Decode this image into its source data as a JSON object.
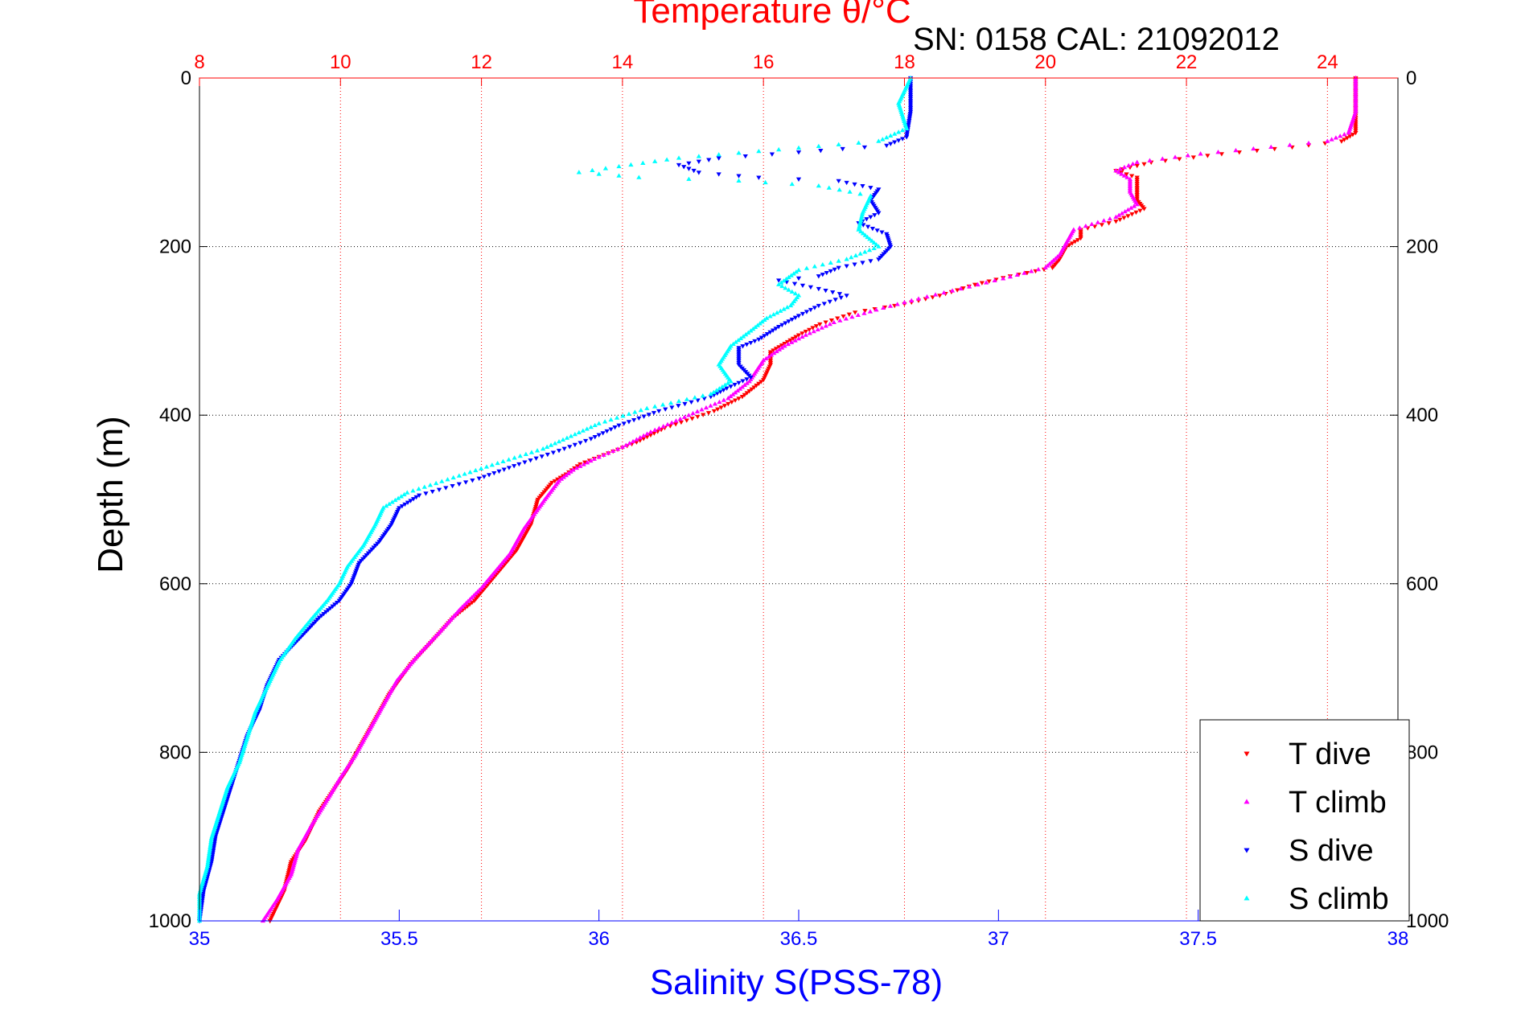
{
  "chart_data": {
    "type": "scatter",
    "title": "Temperature θ/°C",
    "subtitle": "SN: 0158  CAL: 21092012",
    "ylabel": "Depth (m)",
    "xlabel": "Salinity S(PSS-78)",
    "ylim": [
      0,
      1000
    ],
    "y_reversed": true,
    "y_ticks": [
      0,
      200,
      400,
      600,
      800,
      1000
    ],
    "y_tick_labels": [
      "0",
      "200",
      "400",
      "600",
      "800",
      "1000"
    ],
    "x_bottom": {
      "label": "Salinity S(PSS-78)",
      "lim": [
        35,
        38
      ],
      "ticks": [
        35,
        35.5,
        36,
        36.5,
        37,
        37.5,
        38
      ],
      "tick_labels": [
        "35",
        "35.5",
        "36",
        "36.5",
        "37",
        "37.5",
        "38"
      ],
      "color": "#0000ff"
    },
    "x_top": {
      "label": "Temperature θ/°C",
      "lim": [
        8,
        25
      ],
      "ticks": [
        8,
        10,
        12,
        14,
        16,
        18,
        20,
        22,
        24
      ],
      "tick_labels": [
        "8",
        "10",
        "12",
        "14",
        "16",
        "18",
        "20",
        "22",
        "24"
      ],
      "color": "#ff0000"
    },
    "grid": true,
    "legend_position": "bottom-right",
    "series": [
      {
        "name": "T dive",
        "axis": "top",
        "color": "#ff0000",
        "marker": "triangle-down",
        "points": [
          [
            24.4,
            0
          ],
          [
            24.4,
            40
          ],
          [
            24.4,
            65
          ],
          [
            24.2,
            75
          ],
          [
            23.5,
            82
          ],
          [
            22.5,
            90
          ],
          [
            21.5,
            100
          ],
          [
            21.0,
            110
          ],
          [
            21.3,
            118
          ],
          [
            21.3,
            130
          ],
          [
            21.3,
            145
          ],
          [
            21.4,
            155
          ],
          [
            21.0,
            170
          ],
          [
            20.5,
            180
          ],
          [
            20.5,
            190
          ],
          [
            20.3,
            200
          ],
          [
            20.2,
            215
          ],
          [
            20.1,
            225
          ],
          [
            19.5,
            235
          ],
          [
            19.0,
            245
          ],
          [
            18.5,
            258
          ],
          [
            18.0,
            268
          ],
          [
            17.3,
            278
          ],
          [
            16.8,
            292
          ],
          [
            16.5,
            305
          ],
          [
            16.3,
            315
          ],
          [
            16.1,
            325
          ],
          [
            16.1,
            340
          ],
          [
            16.0,
            358
          ],
          [
            15.7,
            378
          ],
          [
            15.3,
            395
          ],
          [
            14.6,
            415
          ],
          [
            14.2,
            432
          ],
          [
            13.8,
            445
          ],
          [
            13.4,
            458
          ],
          [
            13.2,
            470
          ],
          [
            13.0,
            480
          ],
          [
            12.8,
            500
          ],
          [
            12.7,
            530
          ],
          [
            12.5,
            560
          ],
          [
            12.3,
            580
          ],
          [
            12.1,
            600
          ],
          [
            11.9,
            620
          ],
          [
            11.6,
            640
          ],
          [
            11.3,
            668
          ],
          [
            11.0,
            695
          ],
          [
            10.7,
            730
          ],
          [
            10.5,
            760
          ],
          [
            10.3,
            790
          ],
          [
            10.1,
            820
          ],
          [
            9.9,
            845
          ],
          [
            9.7,
            870
          ],
          [
            9.5,
            905
          ],
          [
            9.3,
            930
          ],
          [
            9.2,
            965
          ],
          [
            9.0,
            1000
          ]
        ]
      },
      {
        "name": "T climb",
        "axis": "top",
        "color": "#ff00ff",
        "marker": "triangle-up",
        "points": [
          [
            24.4,
            0
          ],
          [
            24.4,
            40
          ],
          [
            24.3,
            65
          ],
          [
            24.0,
            75
          ],
          [
            23.2,
            82
          ],
          [
            22.2,
            90
          ],
          [
            21.3,
            100
          ],
          [
            21.0,
            110
          ],
          [
            21.2,
            120
          ],
          [
            21.2,
            135
          ],
          [
            21.3,
            150
          ],
          [
            21.0,
            165
          ],
          [
            20.4,
            180
          ],
          [
            20.3,
            195
          ],
          [
            20.2,
            210
          ],
          [
            20.0,
            225
          ],
          [
            19.4,
            238
          ],
          [
            18.8,
            250
          ],
          [
            18.2,
            262
          ],
          [
            17.6,
            275
          ],
          [
            17.0,
            290
          ],
          [
            16.6,
            305
          ],
          [
            16.3,
            318
          ],
          [
            16.0,
            335
          ],
          [
            15.8,
            360
          ],
          [
            15.5,
            380
          ],
          [
            15.0,
            398
          ],
          [
            14.4,
            420
          ],
          [
            14.0,
            438
          ],
          [
            13.6,
            452
          ],
          [
            13.3,
            465
          ],
          [
            13.1,
            478
          ],
          [
            12.9,
            500
          ],
          [
            12.6,
            535
          ],
          [
            12.4,
            565
          ],
          [
            12.2,
            585
          ],
          [
            12.0,
            605
          ],
          [
            11.7,
            630
          ],
          [
            11.4,
            658
          ],
          [
            11.1,
            685
          ],
          [
            10.8,
            715
          ],
          [
            10.6,
            745
          ],
          [
            10.4,
            775
          ],
          [
            10.2,
            805
          ],
          [
            10.0,
            830
          ],
          [
            9.8,
            858
          ],
          [
            9.6,
            885
          ],
          [
            9.4,
            915
          ],
          [
            9.3,
            945
          ],
          [
            9.1,
            975
          ],
          [
            8.9,
            1000
          ]
        ]
      },
      {
        "name": "S dive",
        "axis": "bottom",
        "color": "#0000ff",
        "marker": "triangle-down",
        "points": [
          [
            36.78,
            0
          ],
          [
            36.78,
            40
          ],
          [
            36.77,
            70
          ],
          [
            36.72,
            80
          ],
          [
            36.5,
            88
          ],
          [
            36.3,
            95
          ],
          [
            36.2,
            103
          ],
          [
            36.25,
            112
          ],
          [
            36.4,
            118
          ],
          [
            36.6,
            122
          ],
          [
            36.7,
            132
          ],
          [
            36.68,
            145
          ],
          [
            36.7,
            160
          ],
          [
            36.65,
            172
          ],
          [
            36.72,
            185
          ],
          [
            36.73,
            200
          ],
          [
            36.7,
            215
          ],
          [
            36.6,
            225
          ],
          [
            36.55,
            235
          ],
          [
            36.45,
            240
          ],
          [
            36.55,
            250
          ],
          [
            36.62,
            258
          ],
          [
            36.55,
            270
          ],
          [
            36.5,
            282
          ],
          [
            36.45,
            295
          ],
          [
            36.4,
            310
          ],
          [
            36.35,
            320
          ],
          [
            36.35,
            340
          ],
          [
            36.38,
            355
          ],
          [
            36.32,
            368
          ],
          [
            36.28,
            378
          ],
          [
            36.15,
            395
          ],
          [
            36.05,
            412
          ],
          [
            35.98,
            428
          ],
          [
            35.9,
            442
          ],
          [
            35.8,
            458
          ],
          [
            35.7,
            475
          ],
          [
            35.55,
            495
          ],
          [
            35.5,
            510
          ],
          [
            35.48,
            530
          ],
          [
            35.45,
            550
          ],
          [
            35.4,
            575
          ],
          [
            35.38,
            600
          ],
          [
            35.35,
            620
          ],
          [
            35.3,
            640
          ],
          [
            35.25,
            665
          ],
          [
            35.2,
            690
          ],
          [
            35.17,
            720
          ],
          [
            35.15,
            750
          ],
          [
            35.12,
            780
          ],
          [
            35.1,
            810
          ],
          [
            35.08,
            840
          ],
          [
            35.06,
            870
          ],
          [
            35.04,
            900
          ],
          [
            35.03,
            930
          ],
          [
            35.01,
            965
          ],
          [
            35.0,
            1000
          ]
        ]
      },
      {
        "name": "S climb",
        "axis": "bottom",
        "color": "#00ffff",
        "marker": "triangle-up",
        "points": [
          [
            36.78,
            0
          ],
          [
            36.75,
            30
          ],
          [
            36.77,
            60
          ],
          [
            36.7,
            75
          ],
          [
            36.45,
            85
          ],
          [
            36.2,
            95
          ],
          [
            36.05,
            105
          ],
          [
            35.95,
            112
          ],
          [
            36.1,
            118
          ],
          [
            36.35,
            122
          ],
          [
            36.55,
            128
          ],
          [
            36.68,
            140
          ],
          [
            36.66,
            160
          ],
          [
            36.65,
            180
          ],
          [
            36.7,
            200
          ],
          [
            36.62,
            215
          ],
          [
            36.5,
            228
          ],
          [
            36.45,
            245
          ],
          [
            36.5,
            258
          ],
          [
            36.48,
            270
          ],
          [
            36.42,
            285
          ],
          [
            36.38,
            300
          ],
          [
            36.33,
            318
          ],
          [
            36.3,
            340
          ],
          [
            36.33,
            360
          ],
          [
            36.28,
            375
          ],
          [
            36.12,
            392
          ],
          [
            36.0,
            410
          ],
          [
            35.93,
            425
          ],
          [
            35.86,
            440
          ],
          [
            35.76,
            455
          ],
          [
            35.65,
            472
          ],
          [
            35.52,
            492
          ],
          [
            35.46,
            510
          ],
          [
            35.44,
            530
          ],
          [
            35.41,
            555
          ],
          [
            35.37,
            580
          ],
          [
            35.35,
            600
          ],
          [
            35.32,
            620
          ],
          [
            35.28,
            642
          ],
          [
            35.24,
            665
          ],
          [
            35.2,
            692
          ],
          [
            35.17,
            722
          ],
          [
            35.14,
            752
          ],
          [
            35.12,
            782
          ],
          [
            35.1,
            812
          ],
          [
            35.07,
            842
          ],
          [
            35.05,
            872
          ],
          [
            35.03,
            902
          ],
          [
            35.02,
            935
          ],
          [
            35.0,
            968
          ],
          [
            35.0,
            1000
          ]
        ]
      }
    ]
  }
}
